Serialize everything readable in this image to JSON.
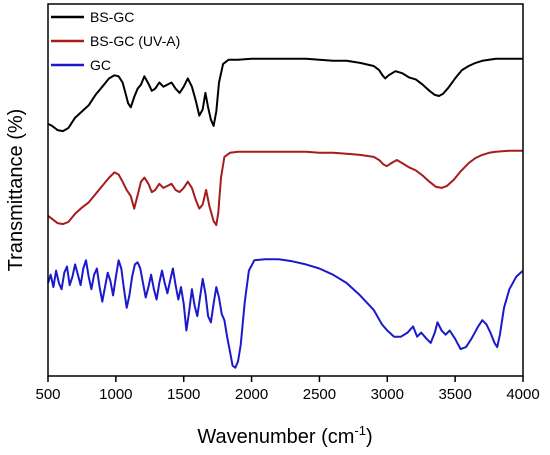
{
  "chart_data": {
    "type": "line",
    "title": "",
    "xlabel": "Wavenumber (cm",
    "xlabel_superscript": "-1",
    "xlabel_suffix": ")",
    "ylabel": "Transmittance (%)",
    "xlim": [
      500,
      4000
    ],
    "ylim": [
      0,
      3.6
    ],
    "x_ticks": [
      "500",
      "1000",
      "1500",
      "2000",
      "2500",
      "3000",
      "3500",
      "4000"
    ],
    "y_tick_labels": false,
    "grid": false,
    "legend_position": "top-left",
    "series": [
      {
        "name": "BS-GC",
        "color": "#000000",
        "points": [
          [
            500,
            2.44
          ],
          [
            530,
            2.42
          ],
          [
            570,
            2.38
          ],
          [
            610,
            2.37
          ],
          [
            650,
            2.4
          ],
          [
            700,
            2.5
          ],
          [
            750,
            2.56
          ],
          [
            800,
            2.62
          ],
          [
            850,
            2.72
          ],
          [
            900,
            2.8
          ],
          [
            950,
            2.88
          ],
          [
            990,
            2.91
          ],
          [
            1020,
            2.9
          ],
          [
            1050,
            2.84
          ],
          [
            1070,
            2.74
          ],
          [
            1090,
            2.64
          ],
          [
            1110,
            2.6
          ],
          [
            1135,
            2.7
          ],
          [
            1160,
            2.78
          ],
          [
            1185,
            2.82
          ],
          [
            1210,
            2.9
          ],
          [
            1240,
            2.83
          ],
          [
            1265,
            2.76
          ],
          [
            1290,
            2.78
          ],
          [
            1320,
            2.84
          ],
          [
            1350,
            2.8
          ],
          [
            1380,
            2.82
          ],
          [
            1410,
            2.84
          ],
          [
            1440,
            2.78
          ],
          [
            1470,
            2.74
          ],
          [
            1500,
            2.8
          ],
          [
            1530,
            2.88
          ],
          [
            1560,
            2.8
          ],
          [
            1590,
            2.66
          ],
          [
            1615,
            2.52
          ],
          [
            1640,
            2.58
          ],
          [
            1660,
            2.74
          ],
          [
            1680,
            2.6
          ],
          [
            1700,
            2.48
          ],
          [
            1720,
            2.42
          ],
          [
            1740,
            2.56
          ],
          [
            1760,
            2.84
          ],
          [
            1790,
            3.02
          ],
          [
            1830,
            3.06
          ],
          [
            1900,
            3.06
          ],
          [
            2000,
            3.07
          ],
          [
            2100,
            3.07
          ],
          [
            2200,
            3.07
          ],
          [
            2300,
            3.07
          ],
          [
            2400,
            3.07
          ],
          [
            2500,
            3.06
          ],
          [
            2600,
            3.05
          ],
          [
            2700,
            3.05
          ],
          [
            2800,
            3.03
          ],
          [
            2900,
            3.0
          ],
          [
            2940,
            2.96
          ],
          [
            2965,
            2.91
          ],
          [
            2985,
            2.88
          ],
          [
            3010,
            2.91
          ],
          [
            3060,
            2.95
          ],
          [
            3110,
            2.93
          ],
          [
            3160,
            2.89
          ],
          [
            3210,
            2.87
          ],
          [
            3260,
            2.82
          ],
          [
            3310,
            2.76
          ],
          [
            3350,
            2.72
          ],
          [
            3380,
            2.71
          ],
          [
            3410,
            2.73
          ],
          [
            3450,
            2.79
          ],
          [
            3500,
            2.88
          ],
          [
            3550,
            2.96
          ],
          [
            3600,
            3.0
          ],
          [
            3650,
            3.03
          ],
          [
            3700,
            3.05
          ],
          [
            3750,
            3.06
          ],
          [
            3800,
            3.07
          ],
          [
            3900,
            3.07
          ],
          [
            4000,
            3.07
          ]
        ]
      },
      {
        "name": "BS-GC (UV-A)",
        "color": "#a61c1c",
        "points": [
          [
            500,
            1.55
          ],
          [
            530,
            1.52
          ],
          [
            570,
            1.48
          ],
          [
            610,
            1.47
          ],
          [
            650,
            1.49
          ],
          [
            700,
            1.57
          ],
          [
            750,
            1.63
          ],
          [
            800,
            1.68
          ],
          [
            850,
            1.76
          ],
          [
            900,
            1.84
          ],
          [
            950,
            1.92
          ],
          [
            990,
            1.97
          ],
          [
            1020,
            1.95
          ],
          [
            1050,
            1.88
          ],
          [
            1080,
            1.8
          ],
          [
            1110,
            1.74
          ],
          [
            1135,
            1.62
          ],
          [
            1160,
            1.75
          ],
          [
            1185,
            1.88
          ],
          [
            1210,
            1.92
          ],
          [
            1240,
            1.86
          ],
          [
            1265,
            1.78
          ],
          [
            1290,
            1.8
          ],
          [
            1320,
            1.86
          ],
          [
            1350,
            1.82
          ],
          [
            1380,
            1.84
          ],
          [
            1410,
            1.86
          ],
          [
            1440,
            1.8
          ],
          [
            1470,
            1.78
          ],
          [
            1500,
            1.82
          ],
          [
            1530,
            1.88
          ],
          [
            1560,
            1.82
          ],
          [
            1590,
            1.7
          ],
          [
            1615,
            1.62
          ],
          [
            1640,
            1.66
          ],
          [
            1665,
            1.8
          ],
          [
            1690,
            1.64
          ],
          [
            1720,
            1.5
          ],
          [
            1740,
            1.46
          ],
          [
            1755,
            1.58
          ],
          [
            1775,
            1.92
          ],
          [
            1800,
            2.12
          ],
          [
            1840,
            2.16
          ],
          [
            1900,
            2.17
          ],
          [
            2000,
            2.17
          ],
          [
            2100,
            2.17
          ],
          [
            2200,
            2.17
          ],
          [
            2300,
            2.17
          ],
          [
            2400,
            2.17
          ],
          [
            2500,
            2.16
          ],
          [
            2600,
            2.16
          ],
          [
            2700,
            2.15
          ],
          [
            2800,
            2.14
          ],
          [
            2900,
            2.12
          ],
          [
            2940,
            2.09
          ],
          [
            2970,
            2.05
          ],
          [
            2995,
            2.03
          ],
          [
            3030,
            2.06
          ],
          [
            3070,
            2.09
          ],
          [
            3110,
            2.06
          ],
          [
            3160,
            2.02
          ],
          [
            3210,
            1.99
          ],
          [
            3260,
            1.94
          ],
          [
            3310,
            1.88
          ],
          [
            3360,
            1.83
          ],
          [
            3400,
            1.82
          ],
          [
            3440,
            1.84
          ],
          [
            3490,
            1.9
          ],
          [
            3540,
            1.98
          ],
          [
            3600,
            2.06
          ],
          [
            3650,
            2.11
          ],
          [
            3700,
            2.14
          ],
          [
            3750,
            2.16
          ],
          [
            3800,
            2.17
          ],
          [
            3900,
            2.18
          ],
          [
            4000,
            2.18
          ]
        ]
      },
      {
        "name": "GC",
        "color": "#1a1acc",
        "points": [
          [
            500,
            0.9
          ],
          [
            520,
            0.98
          ],
          [
            540,
            0.86
          ],
          [
            560,
            1.02
          ],
          [
            580,
            0.9
          ],
          [
            600,
            0.84
          ],
          [
            620,
            1.0
          ],
          [
            640,
            1.06
          ],
          [
            660,
            0.88
          ],
          [
            680,
            0.96
          ],
          [
            700,
            1.08
          ],
          [
            720,
            0.98
          ],
          [
            740,
            0.88
          ],
          [
            760,
            1.04
          ],
          [
            780,
            1.12
          ],
          [
            800,
            0.96
          ],
          [
            820,
            0.84
          ],
          [
            840,
            0.98
          ],
          [
            860,
            1.04
          ],
          [
            880,
            0.86
          ],
          [
            900,
            0.72
          ],
          [
            920,
            0.86
          ],
          [
            940,
            1.0
          ],
          [
            960,
            0.92
          ],
          [
            980,
            0.78
          ],
          [
            1000,
            0.96
          ],
          [
            1020,
            1.12
          ],
          [
            1040,
            1.04
          ],
          [
            1060,
            0.84
          ],
          [
            1080,
            0.66
          ],
          [
            1100,
            0.78
          ],
          [
            1120,
            0.96
          ],
          [
            1140,
            1.08
          ],
          [
            1160,
            1.1
          ],
          [
            1180,
            1.04
          ],
          [
            1200,
            0.9
          ],
          [
            1220,
            0.76
          ],
          [
            1240,
            0.86
          ],
          [
            1260,
            0.98
          ],
          [
            1280,
            0.84
          ],
          [
            1300,
            0.74
          ],
          [
            1320,
            0.9
          ],
          [
            1340,
            1.02
          ],
          [
            1360,
            0.9
          ],
          [
            1380,
            0.8
          ],
          [
            1400,
            0.92
          ],
          [
            1420,
            1.04
          ],
          [
            1440,
            0.88
          ],
          [
            1460,
            0.74
          ],
          [
            1480,
            0.86
          ],
          [
            1500,
            0.7
          ],
          [
            1520,
            0.44
          ],
          [
            1540,
            0.62
          ],
          [
            1560,
            0.84
          ],
          [
            1580,
            0.68
          ],
          [
            1600,
            0.58
          ],
          [
            1620,
            0.76
          ],
          [
            1640,
            0.94
          ],
          [
            1660,
            0.8
          ],
          [
            1680,
            0.58
          ],
          [
            1700,
            0.52
          ],
          [
            1720,
            0.7
          ],
          [
            1740,
            0.86
          ],
          [
            1760,
            0.76
          ],
          [
            1780,
            0.6
          ],
          [
            1800,
            0.54
          ],
          [
            1820,
            0.38
          ],
          [
            1840,
            0.24
          ],
          [
            1860,
            0.1
          ],
          [
            1880,
            0.08
          ],
          [
            1900,
            0.14
          ],
          [
            1920,
            0.3
          ],
          [
            1950,
            0.72
          ],
          [
            1980,
            1.02
          ],
          [
            2020,
            1.12
          ],
          [
            2100,
            1.13
          ],
          [
            2200,
            1.13
          ],
          [
            2300,
            1.11
          ],
          [
            2400,
            1.08
          ],
          [
            2500,
            1.04
          ],
          [
            2600,
            0.98
          ],
          [
            2700,
            0.9
          ],
          [
            2800,
            0.78
          ],
          [
            2900,
            0.64
          ],
          [
            2960,
            0.5
          ],
          [
            3000,
            0.44
          ],
          [
            3050,
            0.38
          ],
          [
            3100,
            0.38
          ],
          [
            3150,
            0.42
          ],
          [
            3190,
            0.48
          ],
          [
            3220,
            0.38
          ],
          [
            3250,
            0.42
          ],
          [
            3290,
            0.36
          ],
          [
            3320,
            0.32
          ],
          [
            3350,
            0.42
          ],
          [
            3370,
            0.52
          ],
          [
            3400,
            0.44
          ],
          [
            3430,
            0.4
          ],
          [
            3460,
            0.44
          ],
          [
            3500,
            0.36
          ],
          [
            3540,
            0.26
          ],
          [
            3580,
            0.28
          ],
          [
            3620,
            0.36
          ],
          [
            3670,
            0.48
          ],
          [
            3700,
            0.54
          ],
          [
            3730,
            0.5
          ],
          [
            3760,
            0.42
          ],
          [
            3790,
            0.32
          ],
          [
            3810,
            0.28
          ],
          [
            3830,
            0.4
          ],
          [
            3860,
            0.66
          ],
          [
            3900,
            0.84
          ],
          [
            3950,
            0.96
          ],
          [
            4000,
            1.02
          ]
        ]
      }
    ]
  }
}
